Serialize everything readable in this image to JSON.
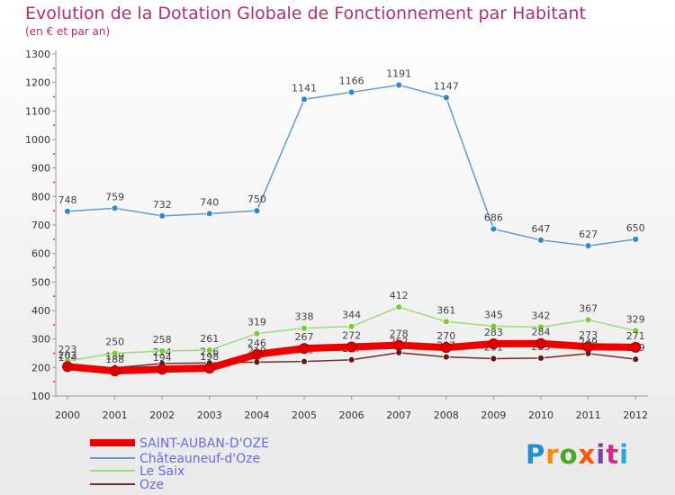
{
  "title": "Evolution de la Dotation Globale de Fonctionnement par Habitant",
  "subtitle": "(en € et par an)",
  "logo": "Proxiti",
  "chart_data": {
    "type": "line",
    "x": [
      "2000",
      "2001",
      "2002",
      "2003",
      "2004",
      "2005",
      "2006",
      "2007",
      "2008",
      "2009",
      "2010",
      "2011",
      "2012"
    ],
    "ylim": [
      100,
      1300
    ],
    "yticks": [
      100,
      200,
      300,
      400,
      500,
      600,
      700,
      800,
      900,
      1000,
      1100,
      1200,
      1300
    ],
    "grid": false,
    "legend_position": "bottom-left",
    "series": [
      {
        "name": "Oze",
        "color": "#7a2b2b",
        "marker": "#5b1c1c",
        "width": 1.5,
        "show_labels": true,
        "values": [
          194,
          199,
          214,
          216,
          219,
          221,
          227,
          252,
          237,
          231,
          233,
          249,
          229
        ]
      },
      {
        "name": "Le Saix",
        "color": "#99dd77",
        "marker": "#77cc33",
        "width": 1.5,
        "show_labels": true,
        "values": [
          223,
          250,
          258,
          261,
          319,
          338,
          344,
          412,
          361,
          345,
          342,
          367,
          329
        ]
      },
      {
        "name": "Châteauneuf-d'Oze",
        "color": "#6699cc",
        "marker": "#3388cc",
        "width": 1.5,
        "show_labels": true,
        "values": [
          748,
          759,
          732,
          740,
          750,
          1141,
          1166,
          1191,
          1147,
          686,
          647,
          627,
          650
        ]
      },
      {
        "name": "SAINT-AUBAN-D'OZE",
        "color": "#ee0000",
        "marker": "#dd0000",
        "width": 8,
        "show_labels": true,
        "values": [
          203,
          188,
          194,
          198,
          246,
          267,
          272,
          278,
          270,
          283,
          284,
          273,
          271
        ]
      }
    ],
    "legend_order": [
      "SAINT-AUBAN-D'OZE",
      "Châteauneuf-d'Oze",
      "Le Saix",
      "Oze"
    ]
  }
}
